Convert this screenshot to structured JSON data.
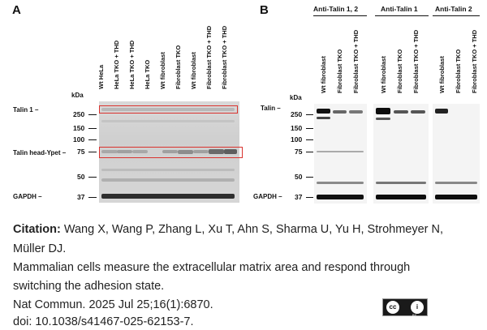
{
  "panelA": {
    "letter": "A",
    "kda_label": "kDa",
    "lanes": [
      "Wt HeLa",
      "HeLa TKO + THD",
      "HeLa TKO + THD",
      "HeLa TKO",
      "Wt fibroblast",
      "Fibroblast TKO",
      "Wt fibroblast",
      "Fibroblast TKO + THD",
      "Fibroblast TKO + THD"
    ],
    "markers": [
      "250",
      "150",
      "100",
      "75",
      "50",
      "37"
    ],
    "side_labels": {
      "talin1": "Talin 1 –",
      "talin_head": "Talin head-Ypet –",
      "gapdh": "GAPDH –"
    }
  },
  "panelB": {
    "letter": "B",
    "kda_label": "kDa",
    "groups": [
      {
        "label": "Anti-Talin 1, 2",
        "lanes": [
          "Wt fibroblast",
          "Fibroblast TKO",
          "Fibroblast TKO + THD"
        ]
      },
      {
        "label": "Anti-Talin 1",
        "lanes": [
          "Wt fibroblast",
          "Fibroblast TKO",
          "Fibroblast TKO + THD"
        ]
      },
      {
        "label": "Anti-Talin 2",
        "lanes": [
          "Wt fibroblast",
          "Fibroblast TKO",
          "Fibroblast TKO + THD"
        ]
      }
    ],
    "markers": [
      "250",
      "150",
      "100",
      "75",
      "50",
      "37"
    ],
    "side_labels": {
      "talin": "Talin –",
      "gapdh": "GAPDH –"
    }
  },
  "citation": {
    "label": "Citation:",
    "authors_line1": " Wang X, Wang P, Zhang L, Xu T, Ahn S, Sharma U, Yu H, Strohmeyer N,",
    "authors_line2": "Müller DJ.",
    "title_line1": "Mammalian cells measure the extracellular matrix area and respond through",
    "title_line2": "switching the adhesion state.",
    "journal": "Nat Commun. 2025 Jul 25;16(1):6870.",
    "doi": "doi: 10.1038/s41467-025-62153-7."
  },
  "license": {
    "cc": "cc",
    "by_symbol": "i",
    "by": "BY"
  }
}
